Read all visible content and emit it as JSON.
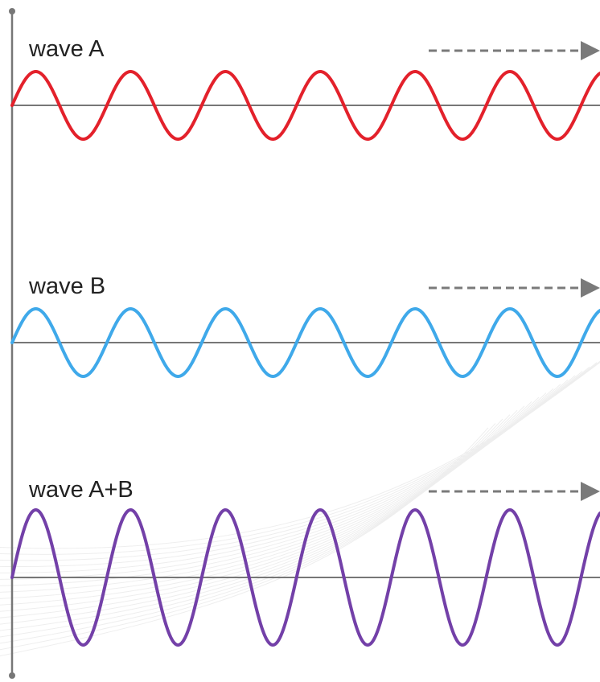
{
  "waves": [
    {
      "label": "wave A",
      "color": "#e3212b",
      "amplitude": 1,
      "cycles": 6.2
    },
    {
      "label": "wave B",
      "color": "#3fa9ea",
      "amplitude": 1,
      "cycles": 6.2
    },
    {
      "label": "wave A+B",
      "color": "#7340a8",
      "amplitude": 2,
      "cycles": 6.2
    }
  ],
  "colors": {
    "axis": "#777777",
    "baseline": "#777777",
    "arrow": "#7a7a7a",
    "background_pattern": "#eeeeee"
  },
  "icons": {
    "direction": "dashed-arrow-right-icon"
  }
}
